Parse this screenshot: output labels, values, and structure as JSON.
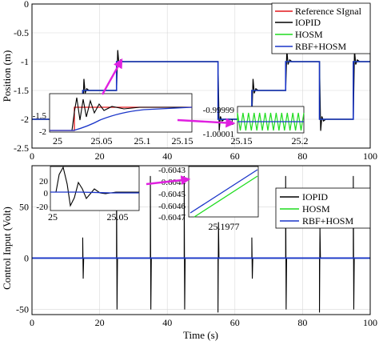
{
  "figure": {
    "top_panel": {
      "ylabel": "Position (m)",
      "xlim": [
        0,
        100
      ],
      "ylim": [
        -2.5,
        0
      ],
      "yticks": [
        0,
        -0.5,
        -1,
        -1.5,
        -2,
        -2.5
      ],
      "yticklabels": [
        "0",
        "-0.5",
        "-1",
        "-1.5",
        "-2",
        "-2.5"
      ],
      "xticks": [
        0,
        20,
        40,
        60,
        80,
        100
      ],
      "xticklabels": [
        "0",
        "20",
        "40",
        "60",
        "80",
        "100"
      ],
      "grid": true,
      "legend": {
        "placement": "top-right",
        "entries": [
          {
            "label": "Reference SIgnal",
            "color": "#e3171b"
          },
          {
            "label": "IOPID",
            "color": "#000000"
          },
          {
            "label": "HOSM",
            "color": "#1fdc1f"
          },
          {
            "label": "RBF+HOSM",
            "color": "#1a35c9"
          }
        ]
      },
      "inset1": {
        "xlim": [
          25,
          25.15
        ],
        "ylim": [
          -2,
          -1
        ],
        "xticks": [
          25,
          25.05,
          25.1,
          25.15
        ],
        "xticklabels": [
          "25",
          "25.05",
          "25.1",
          "25.15"
        ],
        "yticks": [
          -1.5,
          -2
        ],
        "yticklabels": [
          "-1.5",
          "-2"
        ]
      },
      "inset2": {
        "xlim": [
          25.15,
          25.2
        ],
        "ylim": [
          -1.00001,
          -0.99999
        ],
        "xticks": [
          25.15,
          25.2
        ],
        "xticklabels": [
          "25.15",
          "25.2"
        ],
        "yticks": [
          -0.99999,
          -1,
          -1.00001
        ],
        "yticklabels": [
          "-0.99999",
          "-1",
          "-1.00001"
        ]
      }
    },
    "bottom_panel": {
      "ylabel": "Control Input (Volt)",
      "xlabel": "Time (s)",
      "xlim": [
        0,
        100
      ],
      "ylim": [
        -55,
        90
      ],
      "yticks": [
        50,
        0,
        -50
      ],
      "yticklabels": [
        "50",
        "0",
        "-50"
      ],
      "xticks": [
        0,
        20,
        40,
        60,
        80,
        100
      ],
      "xticklabels": [
        "0",
        "20",
        "40",
        "60",
        "80",
        "100"
      ],
      "grid": true,
      "legend": {
        "placement": "top-right",
        "entries": [
          {
            "label": "IOPID",
            "color": "#000000"
          },
          {
            "label": "HOSM",
            "color": "#1fdc1f"
          },
          {
            "label": "RBF+HOSM",
            "color": "#1a35c9"
          }
        ]
      },
      "inset1": {
        "xlim": [
          25,
          25.07
        ],
        "ylim": [
          -20,
          40
        ],
        "xticks": [
          25,
          25.05
        ],
        "xticklabels": [
          "25",
          "25.05"
        ],
        "yticks": [
          20,
          0,
          -20
        ],
        "yticklabels": [
          "20",
          "0",
          "-20"
        ]
      },
      "inset2": {
        "yticks": [
          -0.6043,
          -0.6044,
          -0.6045,
          -0.6046,
          -0.6047
        ],
        "yticklabels": [
          "-0.6043",
          "-0.6044",
          "-0.6045",
          "-0.6046",
          "-0.6047"
        ],
        "xticks": [
          25.1977
        ],
        "xticklabels": [
          "25.1977"
        ]
      }
    },
    "accent_arrow_color": "#e020e0"
  },
  "chart_data": [
    {
      "type": "line",
      "title": "",
      "xlabel": "",
      "ylabel": "Position (m)",
      "xlim": [
        0,
        100
      ],
      "ylim": [
        -2.5,
        0
      ],
      "x": [
        0,
        15,
        25,
        35,
        45,
        55,
        65,
        75,
        85,
        95,
        100
      ],
      "series": [
        {
          "name": "Reference SIgnal",
          "values": [
            -2,
            -1.5,
            -1,
            -1,
            -1,
            -2,
            -1.5,
            -1,
            -2,
            -1,
            -1
          ]
        },
        {
          "name": "IOPID",
          "values": [
            -2,
            -1.5,
            -1,
            -1,
            -1,
            -2,
            -1.5,
            -1,
            -2,
            -1,
            -1
          ]
        },
        {
          "name": "HOSM",
          "values": [
            -2,
            -1.5,
            -1,
            -1,
            -1,
            -2,
            -1.5,
            -1,
            -2,
            -1,
            -1
          ]
        },
        {
          "name": "RBF+HOSM",
          "values": [
            -2,
            -1.5,
            -1,
            -1,
            -1,
            -2,
            -1.5,
            -1,
            -2,
            -1,
            -1
          ]
        }
      ]
    },
    {
      "type": "line",
      "title": "",
      "xlabel": "Time (s)",
      "ylabel": "Control Input (Volt)",
      "xlim": [
        0,
        100
      ],
      "ylim": [
        -55,
        90
      ],
      "spike_times": [
        15,
        25,
        35,
        45,
        55,
        65,
        75,
        85,
        95
      ],
      "spike_peaks": [
        20,
        80,
        80,
        80,
        -80,
        20,
        80,
        -80,
        80
      ],
      "spike_troughs": [
        -20,
        -50,
        -50,
        -50,
        35,
        -20,
        -50,
        30,
        -50
      ],
      "series": [
        {
          "name": "IOPID",
          "baseline": 0
        },
        {
          "name": "HOSM",
          "baseline": 0
        },
        {
          "name": "RBF+HOSM",
          "baseline": 0
        }
      ]
    }
  ]
}
